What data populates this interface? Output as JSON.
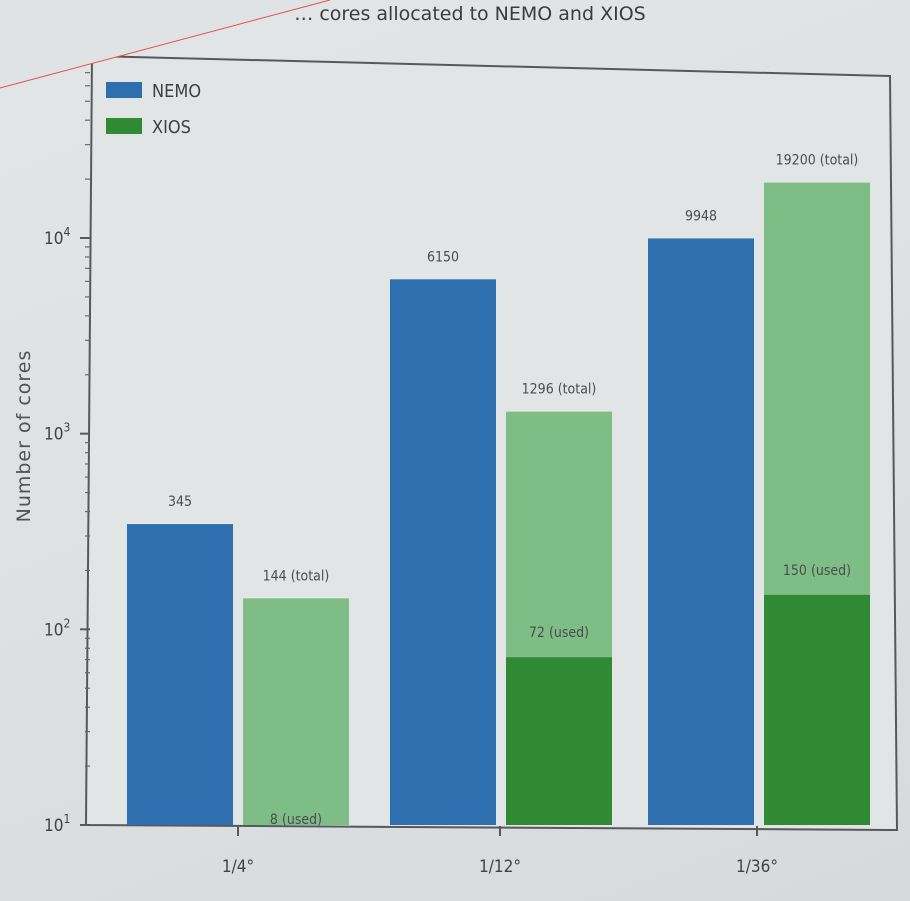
{
  "chart_data": {
    "type": "bar",
    "title": "… cores allocated to NEMO and XIOS",
    "xlabel": "",
    "ylabel": "Number of cores",
    "yscale": "log",
    "ylim": [
      10,
      80000
    ],
    "yticks": [
      {
        "value": 10,
        "label": "10",
        "exp": "1"
      },
      {
        "value": 100,
        "label": "10",
        "exp": "2"
      },
      {
        "value": 1000,
        "label": "10",
        "exp": "3"
      },
      {
        "value": 10000,
        "label": "10",
        "exp": "4"
      }
    ],
    "categories": [
      "1/4°",
      "1/12°",
      "1/36°"
    ],
    "series": [
      {
        "name": "NEMO",
        "color": "#2e6fb0",
        "values": [
          345,
          6150,
          9948
        ],
        "labels": [
          "345",
          "6150",
          "9948"
        ]
      },
      {
        "name": "XIOS",
        "color": "#2f8a33",
        "total_color": "#7fbd86",
        "totals": [
          144,
          1296,
          19200
        ],
        "total_labels": [
          "144 (total)",
          "1296 (total)",
          "19200 (total)"
        ],
        "used": [
          8,
          72,
          150
        ],
        "used_labels": [
          "8 (used)",
          "72 (used)",
          "150 (used)"
        ]
      }
    ],
    "legend": {
      "position": "top-left"
    },
    "grid": false
  }
}
